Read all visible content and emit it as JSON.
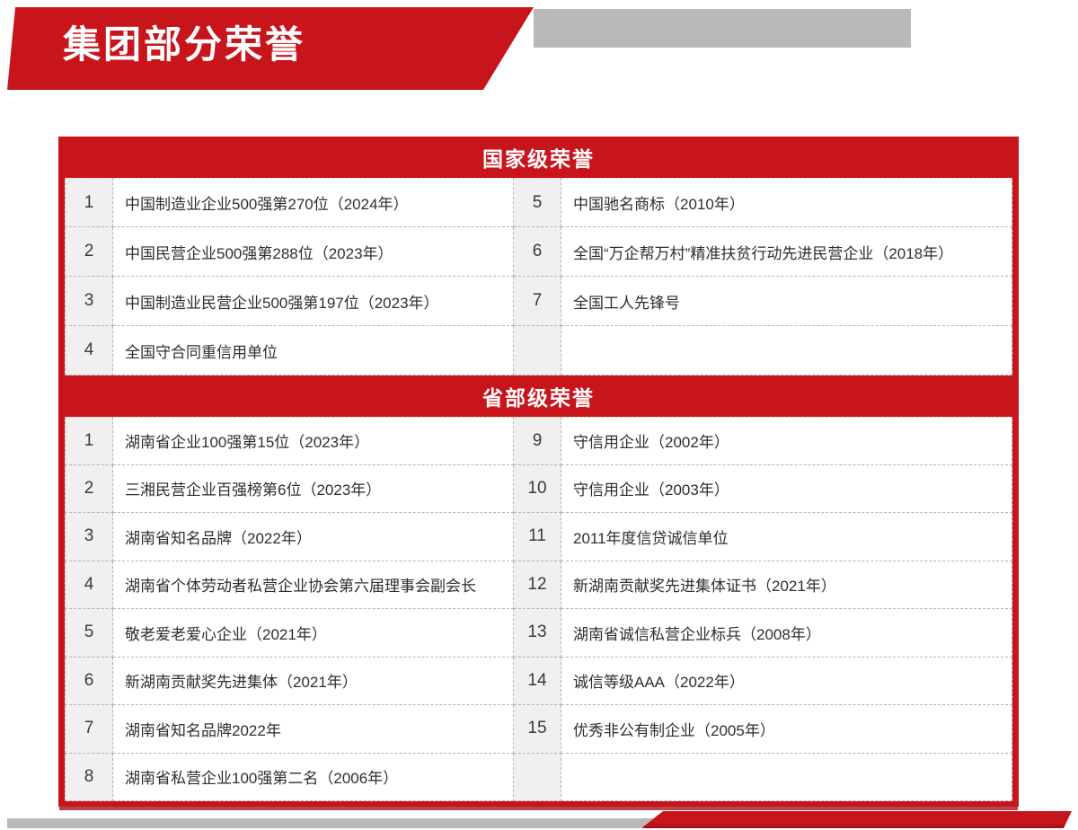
{
  "header": {
    "title": "集团部分荣誉"
  },
  "colors": {
    "primary_red": "#c8151c",
    "dark_red": "#9e0d12",
    "gray_strip": "#b9b9b9",
    "number_cell_bg": "#f1eff0",
    "dashed_border": "#b6b4b4",
    "text": "#2e2e2e"
  },
  "sections": [
    {
      "title": "国家级荣誉",
      "rows": [
        {
          "left_no": "1",
          "left_text": "中国制造业企业500强第270位（2024年）",
          "right_no": "5",
          "right_text": "中国驰名商标（2010年）"
        },
        {
          "left_no": "2",
          "left_text": "中国民营企业500强第288位（2023年）",
          "right_no": "6",
          "right_text": "全国“万企帮万村”精准扶贫行动先进民营企业（2018年）"
        },
        {
          "left_no": "3",
          "left_text": "中国制造业民营企业500强第197位（2023年）",
          "right_no": "7",
          "right_text": "全国工人先锋号"
        },
        {
          "left_no": "4",
          "left_text": "全国守合同重信用单位",
          "right_no": "",
          "right_text": ""
        }
      ]
    },
    {
      "title": "省部级荣誉",
      "rows": [
        {
          "left_no": "1",
          "left_text": "湖南省企业100强第15位（2023年）",
          "right_no": "9",
          "right_text": "守信用企业（2002年）"
        },
        {
          "left_no": "2",
          "left_text": "三湘民营企业百强榜第6位（2023年）",
          "right_no": "10",
          "right_text": "守信用企业（2003年）"
        },
        {
          "left_no": "3",
          "left_text": "湖南省知名品牌（2022年）",
          "right_no": "11",
          "right_text": "2011年度信贷诚信单位"
        },
        {
          "left_no": "4",
          "left_text": "湖南省个体劳动者私营企业协会第六届理事会副会长",
          "right_no": "12",
          "right_text": "新湖南贡献奖先进集体证书（2021年）"
        },
        {
          "left_no": "5",
          "left_text": "敬老爱老爱心企业（2021年）",
          "right_no": "13",
          "right_text": "湖南省诚信私营企业标兵（2008年）"
        },
        {
          "left_no": "6",
          "left_text": "新湖南贡献奖先进集体（2021年）",
          "right_no": "14",
          "right_text": "诚信等级AAA（2022年）"
        },
        {
          "left_no": "7",
          "left_text": "湖南省知名品牌2022年",
          "right_no": "15",
          "right_text": "优秀非公有制企业（2005年）"
        },
        {
          "left_no": "8",
          "left_text": "湖南省私营企业100强第二名（2006年）",
          "right_no": "",
          "right_text": ""
        }
      ]
    }
  ]
}
